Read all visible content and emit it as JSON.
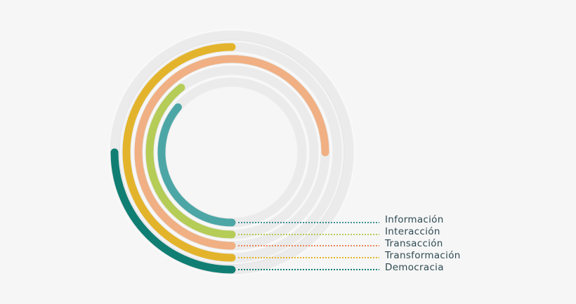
{
  "chart_data": {
    "type": "radial-bar",
    "title": "",
    "center": [
      330,
      217
    ],
    "track_color": "#e6e6e6",
    "outer_track_radius": 165,
    "outer_track_width": 16,
    "start_angle_note": "arcs start at 6 o'clock and sweep clockwise",
    "series": [
      {
        "name": "Información",
        "radius": 100,
        "sweep_deg": 130,
        "color": "#4da6a6",
        "dot_color": "#3d8f96"
      },
      {
        "name": "Interacción",
        "radius": 117,
        "sweep_deg": 142,
        "color": "#b5cc57",
        "dot_color": "#b5cc57"
      },
      {
        "name": "Transacción",
        "radius": 133,
        "sweep_deg": 270,
        "color": "#f0b083",
        "dot_color": "#e8875a"
      },
      {
        "name": "Transformación",
        "radius": 150,
        "sweep_deg": 180,
        "color": "#e3b42b",
        "dot_color": "#e3b42b"
      },
      {
        "name": "Democracia",
        "radius": 167,
        "sweep_deg": 90,
        "color": "#117e73",
        "dot_color": "#117e73"
      }
    ]
  },
  "legend": {
    "items": [
      "Información",
      "Interacción",
      "Transacción",
      "Transformación",
      "Democracia"
    ]
  }
}
